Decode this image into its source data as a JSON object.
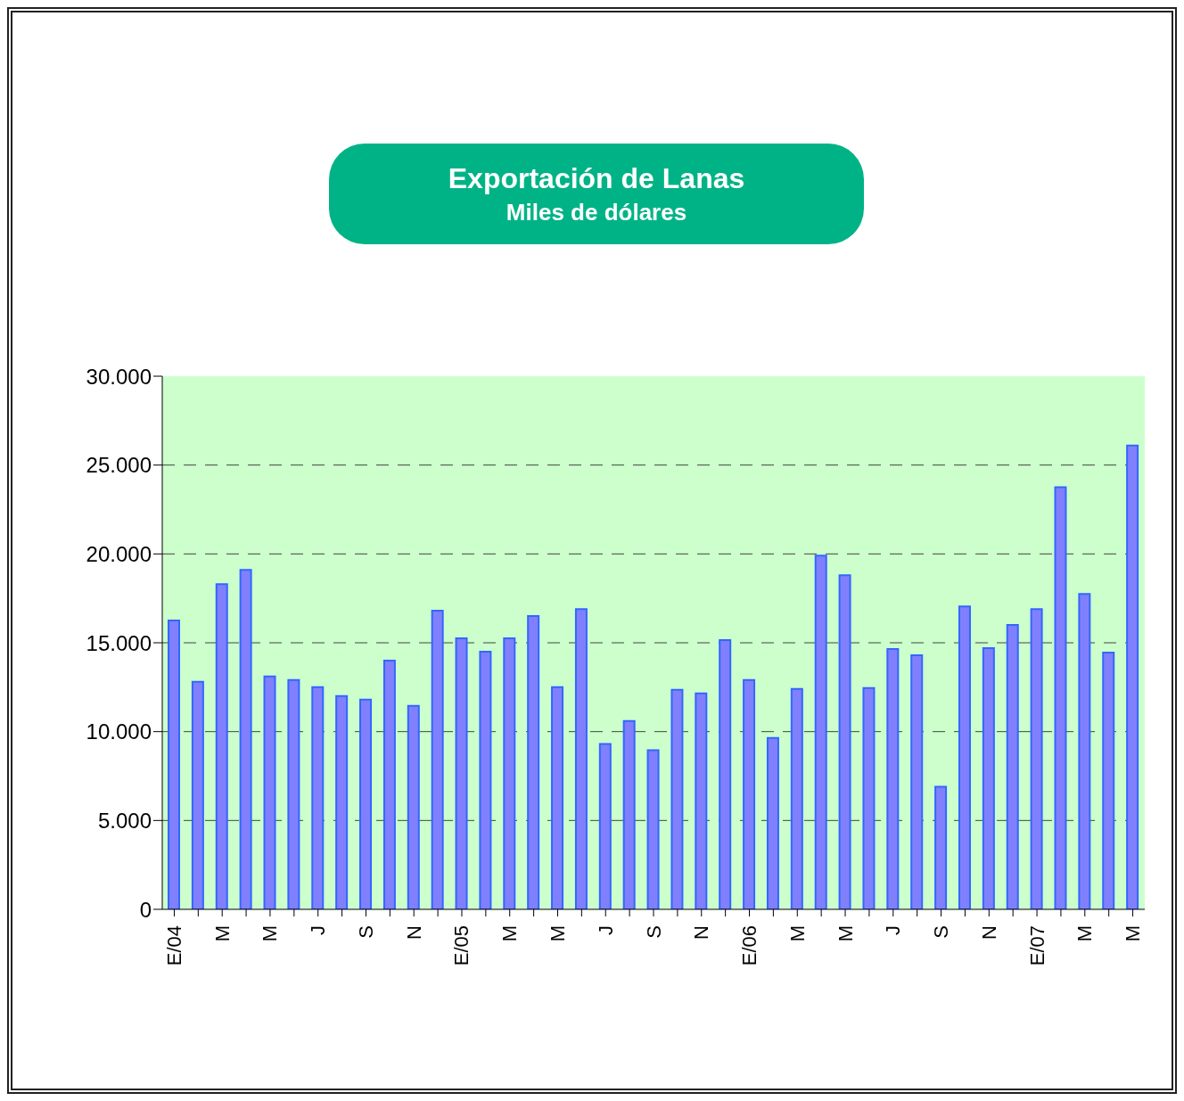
{
  "chart_data": {
    "type": "bar",
    "title": "Exportación de Lanas",
    "subtitle": "Miles de dólares",
    "categories": [
      "E/04",
      null,
      "M",
      null,
      "M",
      null,
      "J",
      null,
      "S",
      null,
      "N",
      null,
      "E/05",
      null,
      "M",
      null,
      "M",
      null,
      "J",
      null,
      "S",
      null,
      "N",
      null,
      "E/06",
      null,
      "M",
      null,
      "M",
      null,
      "J",
      null,
      "S",
      null,
      "N",
      null,
      "E/07",
      null,
      "M",
      null,
      "M"
    ],
    "values": [
      16250,
      12800,
      18300,
      19100,
      13100,
      12900,
      12500,
      12000,
      11800,
      14000,
      11450,
      16800,
      15250,
      14500,
      15250,
      16500,
      12500,
      16900,
      9300,
      10600,
      8950,
      12350,
      12150,
      15150,
      12900,
      9650,
      12400,
      19900,
      18800,
      12450,
      14650,
      14300,
      6900,
      17050,
      14700,
      16000,
      16900,
      23750,
      17750,
      14450,
      26100
    ],
    "color": "#8080ff",
    "ylim": [
      0,
      30000
    ],
    "yticks": [
      0,
      {
        "value": 5000,
        "label": "5.000"
      },
      {
        "value": 10000,
        "label": "10.000"
      },
      {
        "value": 15000,
        "label": "15.000"
      },
      {
        "value": 20000,
        "label": "20.000"
      },
      {
        "value": 25000,
        "label": "25.000"
      },
      {
        "value": 30000,
        "label": "30.000"
      }
    ],
    "grid": "y",
    "legend": false
  }
}
